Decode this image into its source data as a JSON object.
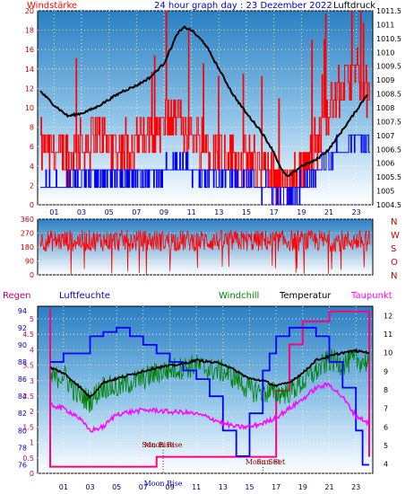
{
  "header": {
    "left_label": "Windstärke",
    "title": "24 hour graph day : 23 Dezember 2022",
    "right_label": "Luftdruck"
  },
  "lower_labels": {
    "regen": "Regen",
    "luftfeuchte": "Luftfeuchte",
    "windchill": "Windchill",
    "temperatur": "Temperatur",
    "taupunkt": "Taupunkt"
  },
  "colors": {
    "wind_gust": "#ff0000",
    "wind_avg": "#0000ff",
    "pressure": "#000000",
    "direction": "#ff0000",
    "humidity": "#0000ff",
    "windchill": "#008000",
    "temperature": "#000000",
    "dewpoint": "#ff00ff",
    "rain": "#ff0080"
  },
  "chart_data": [
    {
      "type": "line",
      "name_hidden": true,
      "x_ticks": [
        "01",
        "03",
        "05",
        "07",
        "09",
        "11",
        "13",
        "15",
        "17",
        "19",
        "21",
        "23"
      ],
      "y_left_ticks": [
        "0",
        "2",
        "4",
        "6",
        "8",
        "10",
        "12",
        "14",
        "16",
        "18",
        "20"
      ],
      "ylim_left": [
        0,
        20
      ],
      "y_right_ticks": [
        "1004.5",
        "1005",
        "1005.5",
        "1006",
        "1006.5",
        "1007",
        "1007.5",
        "1008",
        "1008.5",
        "1009",
        "1009.5",
        "1010",
        "1010.5",
        "1011",
        "1011.5"
      ],
      "ylim_right": [
        1004.5,
        1011.5
      ],
      "series": [
        {
          "name": "Luftdruck",
          "x": [
            0,
            1,
            2,
            3,
            4,
            5,
            6,
            7,
            8,
            9,
            10,
            10.5,
            11,
            12,
            13,
            14,
            15,
            16,
            17,
            17.5,
            18,
            19,
            20,
            21,
            22,
            23,
            23.8
          ],
          "values": [
            1008.6,
            1008.1,
            1007.7,
            1007.8,
            1008.0,
            1008.3,
            1008.6,
            1008.8,
            1009.1,
            1009.6,
            1010.7,
            1010.9,
            1010.8,
            1010.3,
            1009.4,
            1008.5,
            1007.8,
            1007.2,
            1006.4,
            1005.8,
            1005.5,
            1005.9,
            1006.1,
            1006.5,
            1007.2,
            1007.9,
            1008.5
          ]
        },
        {
          "name": "Wind avg",
          "x": [
            0,
            2,
            4,
            6,
            8,
            10,
            12,
            14,
            16,
            18,
            19,
            20,
            21,
            22,
            23,
            23.8
          ],
          "values": [
            2,
            2,
            3,
            3,
            3,
            4,
            3,
            3,
            2,
            1,
            2,
            3,
            5,
            6,
            7,
            6
          ]
        },
        {
          "name": "Wind gust",
          "x": [
            0,
            2,
            4,
            6,
            8,
            10,
            12,
            14,
            16,
            18,
            19,
            20,
            21,
            22,
            23,
            23.8
          ],
          "values": [
            6,
            5,
            7,
            6,
            7,
            9,
            6,
            5,
            4,
            2,
            4,
            6,
            10,
            12,
            14,
            11
          ]
        }
      ]
    },
    {
      "type": "scatter",
      "y_ticks": [
        "0",
        "90",
        "180",
        "270",
        "360"
      ],
      "ylim": [
        0,
        360
      ],
      "right_letters": [
        "N",
        "W",
        "S",
        "O",
        "N"
      ]
    },
    {
      "type": "line",
      "x_ticks": [
        "01",
        "03",
        "05",
        "07",
        "09",
        "11",
        "13",
        "15",
        "17",
        "19",
        "21",
        "23"
      ],
      "y_rain_ticks": [
        "0",
        "0.5",
        "1",
        "1.5",
        "2",
        "2.5",
        "3",
        "3.5",
        "4",
        "4.5",
        "5"
      ],
      "y_hum_ticks": [
        "76",
        "78",
        "80",
        "82",
        "84",
        "86",
        "88",
        "90",
        "92",
        "94"
      ],
      "y_temp_ticks": [
        "4",
        "5",
        "6",
        "7",
        "8",
        "9",
        "10",
        "11",
        "12"
      ],
      "ylim_hum": [
        75,
        94.5
      ],
      "ylim_temp": [
        3.5,
        12.5
      ],
      "annotations": [
        {
          "label": "Sun Rise",
          "x": 8.1
        },
        {
          "label": "Sun Set",
          "x": 16.2
        },
        {
          "label": "Moon Rise",
          "x": 8.5
        },
        {
          "label": "Moon Set",
          "x": 16.0
        },
        {
          "label": "Moon Rise",
          "x": 8.5
        }
      ],
      "series": [
        {
          "name": "Luftfeuchte",
          "x": [
            0,
            0.5,
            1,
            2,
            3,
            4,
            5,
            6,
            7,
            8,
            9,
            10,
            11,
            12,
            13,
            14,
            15,
            16,
            16.5,
            17,
            18,
            19,
            20,
            21,
            22,
            23,
            23.5,
            24
          ],
          "values": [
            88,
            88,
            89,
            89,
            91,
            91.5,
            92,
            91,
            90,
            89,
            88,
            87,
            86,
            84,
            80,
            77,
            82,
            87,
            89,
            91,
            92,
            92,
            91,
            88,
            85,
            80,
            76,
            76
          ]
        },
        {
          "name": "Temperatur",
          "x": [
            0,
            1,
            2,
            3,
            4,
            5,
            6,
            7,
            8,
            9,
            10,
            11,
            12,
            13,
            14,
            15,
            16,
            17,
            18,
            19,
            20,
            21,
            22,
            23,
            24
          ],
          "values": [
            9.2,
            8.9,
            8.3,
            7.6,
            8.4,
            8.6,
            8.8,
            9.0,
            9.2,
            9.3,
            9.4,
            9.6,
            9.5,
            9.4,
            9.0,
            8.6,
            8.5,
            8.2,
            8.4,
            8.9,
            9.6,
            9.8,
            10.0,
            10.1,
            10.0
          ]
        },
        {
          "name": "Windchill",
          "x": [
            0,
            1,
            2,
            3,
            4,
            5,
            6,
            7,
            8,
            9,
            10,
            11,
            12,
            13,
            14,
            15,
            16,
            17,
            18,
            19,
            20,
            21,
            22,
            23,
            24
          ],
          "values": [
            8.6,
            8.8,
            7.8,
            7.4,
            8.2,
            8.1,
            8.4,
            8.6,
            8.9,
            9.1,
            9.2,
            9.3,
            9.1,
            9.0,
            8.6,
            8.0,
            7.9,
            7.8,
            7.9,
            8.4,
            9.0,
            9.6,
            9.4,
            9.6,
            9.5
          ]
        },
        {
          "name": "Taupunkt",
          "x": [
            0,
            1,
            2,
            3,
            4,
            5,
            6,
            7,
            8,
            9,
            10,
            11,
            12,
            13,
            14,
            15,
            16,
            17,
            18,
            19,
            20,
            21,
            22,
            23,
            24
          ],
          "values": [
            7.2,
            7.0,
            6.6,
            5.8,
            6.0,
            6.7,
            6.8,
            6.9,
            6.9,
            6.8,
            6.8,
            6.7,
            6.5,
            6.2,
            6.0,
            6.0,
            6.2,
            6.5,
            7.0,
            7.5,
            8.1,
            8.3,
            7.6,
            6.6,
            6.2
          ]
        },
        {
          "name": "Regen",
          "x": [
            0,
            1,
            2,
            3,
            4,
            5,
            6,
            7,
            8,
            9,
            10,
            11,
            12,
            13,
            14,
            15,
            16,
            17,
            18,
            19,
            20,
            21,
            22,
            23,
            24
          ],
          "values": [
            0.2,
            0.2,
            0.2,
            0.2,
            0.2,
            0.2,
            0.2,
            0.2,
            0.5,
            0.5,
            0.5,
            0.5,
            0.5,
            0.5,
            0.5,
            0.5,
            0.5,
            2.5,
            3.9,
            4.6,
            4.6,
            4.9,
            4.9,
            4.9,
            0.5
          ]
        }
      ]
    }
  ]
}
